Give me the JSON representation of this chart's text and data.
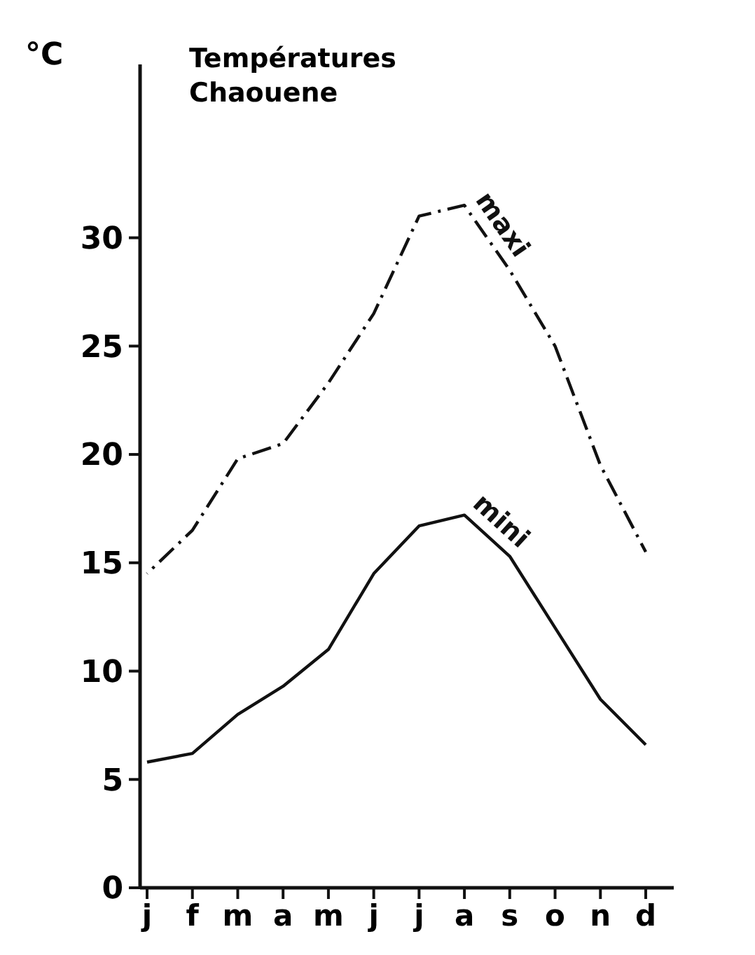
{
  "chart_data": {
    "type": "line",
    "title": "Températures Chaouene",
    "ylabel": "°C",
    "categories": [
      "j",
      "f",
      "m",
      "a",
      "m",
      "j",
      "j",
      "a",
      "s",
      "o",
      "n",
      "d"
    ],
    "series": [
      {
        "name": "maxi",
        "color": "#111111",
        "line_style": "dashed",
        "values": [
          14.5,
          16.5,
          19.8,
          20.5,
          23.3,
          26.5,
          31,
          31.5,
          28.5,
          25,
          19.5,
          15.5
        ]
      },
      {
        "name": "mini",
        "color": "#111111",
        "line_style": "solid",
        "values": [
          5.8,
          6.2,
          8,
          9.3,
          11,
          14.5,
          16.7,
          17.2,
          15.3,
          12,
          8.7,
          6.6
        ]
      }
    ],
    "ylim": [
      0,
      38
    ],
    "yticks": [
      0,
      5,
      10,
      15,
      20,
      25,
      30
    ],
    "grid": false,
    "marker": "none"
  }
}
